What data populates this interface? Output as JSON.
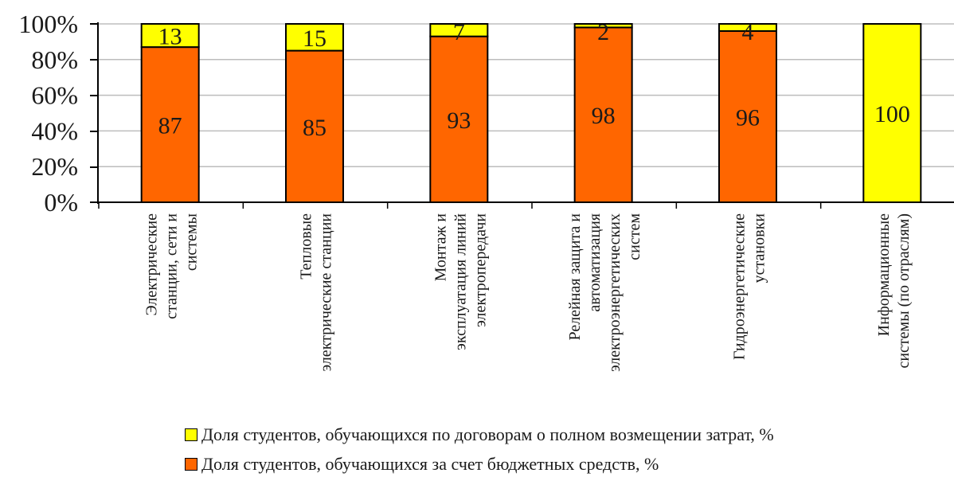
{
  "chart_data": {
    "type": "bar",
    "stacked": true,
    "percent": true,
    "categories": [
      [
        "Электрические",
        "станции, сети и",
        "системы"
      ],
      [
        "Тепловые",
        "электрические станции"
      ],
      [
        "Монтаж и",
        "эксплуатация линий",
        "электропередачи"
      ],
      [
        "Релейная защита и",
        "автоматизация",
        "электроэнергетических",
        "систем"
      ],
      [
        "Гидроэнергетические",
        "установки"
      ],
      [
        "Информационные",
        "системы (по отраслям)"
      ]
    ],
    "series": [
      {
        "name": "Доля студентов, обучающихся за счет  бюджетных средств, %",
        "color": "#ff6600",
        "values": [
          87,
          85,
          93,
          98,
          96,
          0
        ]
      },
      {
        "name": "Доля студентов, обучающихся по договорам о полном возмещении затрат, %",
        "color": "#ffff00",
        "values": [
          13,
          15,
          7,
          2,
          4,
          100
        ]
      }
    ],
    "data_labels": [
      {
        "series": 0,
        "values": [
          "87",
          "85",
          "93",
          "98",
          "96",
          ""
        ]
      },
      {
        "series": 1,
        "values": [
          "13",
          "15",
          "7",
          "2",
          "4",
          "100"
        ]
      }
    ],
    "y_ticks": [
      "0%",
      "20%",
      "40%",
      "60%",
      "80%",
      "100%"
    ],
    "ylim": [
      0,
      100
    ],
    "grid": true,
    "legend_position": "bottom"
  },
  "legend": [
    {
      "label": "Доля студентов, обучающихся по договорам о полном возмещении затрат, %",
      "color": "#ffff00"
    },
    {
      "label": "Доля студентов, обучающихся за счет  бюджетных средств, %",
      "color": "#ff6600"
    }
  ]
}
